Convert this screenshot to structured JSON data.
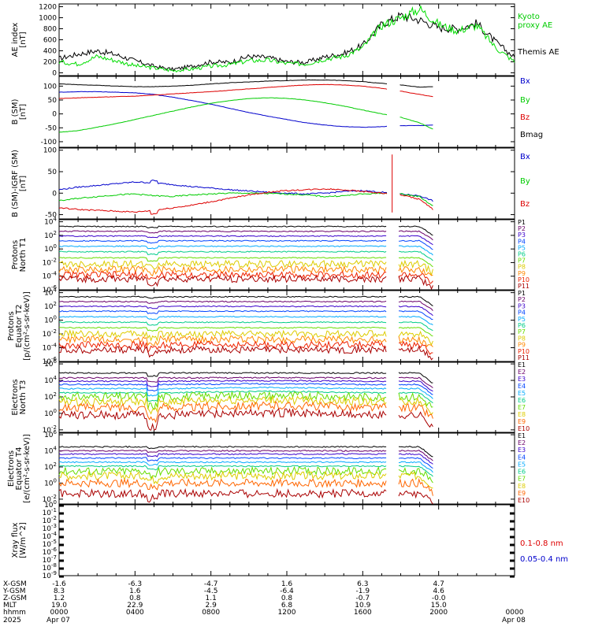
{
  "chart_data": [
    {
      "type": "line",
      "id": "ae",
      "ylabel": [
        "AE index",
        "[nT]"
      ],
      "yticks": [
        "0",
        "200",
        "400",
        "600",
        "800",
        "1000",
        "1200"
      ],
      "ylim": [
        -50,
        1250
      ],
      "legend": [
        "Kyoto",
        "proxy AE",
        "Themis AE"
      ],
      "series": [
        {
          "name": "Themis AE",
          "color": "#000000",
          "x": [
            0,
            1,
            2,
            3,
            4,
            5,
            6,
            7,
            8,
            9,
            10,
            11,
            12,
            13,
            14,
            15,
            16,
            17,
            18,
            19,
            20,
            21,
            22,
            23,
            24
          ],
          "y": [
            260,
            340,
            400,
            330,
            220,
            120,
            60,
            120,
            200,
            190,
            300,
            280,
            200,
            190,
            290,
            350,
            500,
            880,
            1040,
            960,
            820,
            800,
            900,
            560,
            280
          ]
        },
        {
          "name": "Kyoto proxy AE",
          "color": "#00dd00",
          "x": [
            0,
            1,
            2,
            3,
            4,
            5,
            6,
            7,
            8,
            9,
            10,
            11,
            12,
            13,
            14,
            15,
            16,
            17,
            18,
            19,
            20,
            21,
            22,
            23,
            24
          ],
          "y": [
            200,
            160,
            300,
            220,
            130,
            90,
            40,
            70,
            120,
            150,
            220,
            230,
            170,
            160,
            250,
            300,
            460,
            860,
            1000,
            1160,
            880,
            760,
            860,
            460,
            200
          ]
        }
      ]
    },
    {
      "type": "line",
      "id": "bsm",
      "ylabel": [
        "B (SM)",
        "[nT]"
      ],
      "yticks": [
        "-100",
        "-50",
        "0",
        "50",
        "100"
      ],
      "ylim": [
        -120,
        135
      ],
      "legend": [
        "Bx",
        "By",
        "Bz",
        "Bmag"
      ],
      "series": [
        {
          "name": "Bx",
          "color": "#0000cc",
          "x": [
            0,
            1,
            2,
            3,
            4,
            5,
            6,
            7,
            8,
            9,
            10,
            11,
            12,
            13,
            14,
            15,
            16,
            17,
            18,
            19,
            19.7
          ],
          "y": [
            78,
            80,
            80,
            78,
            76,
            70,
            60,
            48,
            35,
            20,
            5,
            -8,
            -20,
            -32,
            -40,
            -46,
            -48,
            -46,
            -42,
            -42,
            -40
          ]
        },
        {
          "name": "By",
          "color": "#00cc00",
          "x": [
            0,
            1,
            2,
            3,
            4,
            5,
            6,
            7,
            8,
            9,
            10,
            11,
            12,
            13,
            14,
            15,
            16,
            17,
            18,
            19,
            19.7
          ],
          "y": [
            -66,
            -60,
            -48,
            -35,
            -20,
            -5,
            10,
            25,
            38,
            48,
            55,
            58,
            56,
            50,
            40,
            28,
            14,
            0,
            -12,
            -32,
            -55
          ]
        },
        {
          "name": "Bz",
          "color": "#dd0000",
          "x": [
            0,
            1,
            2,
            3,
            4,
            5,
            6,
            7,
            8,
            9,
            10,
            11,
            12,
            13,
            14,
            15,
            16,
            17,
            18,
            19,
            19.7
          ],
          "y": [
            55,
            58,
            60,
            62,
            64,
            68,
            72,
            76,
            80,
            85,
            90,
            95,
            100,
            104,
            106,
            104,
            100,
            92,
            82,
            70,
            62
          ]
        },
        {
          "name": "Bmag",
          "color": "#000000",
          "x": [
            0,
            1,
            2,
            3,
            4,
            5,
            6,
            7,
            8,
            9,
            10,
            11,
            12,
            13,
            14,
            15,
            16,
            17,
            18,
            19,
            19.7
          ],
          "y": [
            108,
            105,
            103,
            100,
            98,
            98,
            100,
            103,
            108,
            112,
            115,
            118,
            120,
            122,
            122,
            120,
            116,
            110,
            104,
            96,
            98
          ]
        }
      ]
    },
    {
      "type": "line",
      "id": "bdiff",
      "ylabel": [
        "B (SM)-IGRF (SM)",
        "[nT]"
      ],
      "yticks": [
        "-50",
        "0",
        "50",
        "100"
      ],
      "ylim": [
        -60,
        105
      ],
      "legend": [
        "Bx",
        "By",
        "Bz"
      ],
      "series": [
        {
          "name": "Bx",
          "color": "#0000cc",
          "x": [
            0,
            1,
            2,
            3,
            4,
            5,
            6,
            7,
            8,
            9,
            10,
            11,
            12,
            13,
            14,
            15,
            16,
            17,
            18,
            19,
            19.7
          ],
          "y": [
            8,
            14,
            18,
            22,
            26,
            24,
            20,
            15,
            12,
            8,
            5,
            2,
            0,
            -2,
            0,
            4,
            6,
            2,
            -2,
            -6,
            -18
          ]
        },
        {
          "name": "By",
          "color": "#00cc00",
          "x": [
            0,
            1,
            2,
            3,
            4,
            5,
            6,
            7,
            8,
            9,
            10,
            11,
            12,
            13,
            14,
            15,
            16,
            17,
            18,
            19,
            19.7
          ],
          "y": [
            -18,
            -12,
            -8,
            -4,
            -2,
            -6,
            -8,
            -4,
            -2,
            0,
            0,
            -1,
            -2,
            -4,
            -8,
            -6,
            -2,
            0,
            -2,
            -8,
            -30
          ]
        },
        {
          "name": "Bz",
          "color": "#dd0000",
          "x": [
            0,
            1,
            2,
            3,
            4,
            5,
            6,
            7,
            8,
            9,
            10,
            11,
            12,
            13,
            14,
            15,
            16,
            17,
            18,
            19,
            19.7
          ],
          "y": [
            -34,
            -38,
            -40,
            -42,
            -44,
            -40,
            -34,
            -28,
            -20,
            -12,
            -4,
            2,
            6,
            8,
            10,
            8,
            4,
            0,
            -4,
            -14,
            -38
          ]
        }
      ]
    },
    {
      "type": "line",
      "id": "pn",
      "ylabel": [
        "Protons",
        "North T1"
      ],
      "yticks": [
        "10^-6",
        "10^-4",
        "10^-2",
        "10^0",
        "10^2",
        "10^4"
      ],
      "ylim": [
        -6,
        4.3
      ],
      "legend": [
        "P1",
        "P2",
        "P3",
        "P4",
        "P5",
        "P6",
        "P7",
        "P8",
        "P9",
        "P10",
        "P11"
      ],
      "series": [
        {
          "name": "P1",
          "color": "#000000",
          "level": 3.3
        },
        {
          "name": "P2",
          "color": "#6a006a",
          "level": 2.6
        },
        {
          "name": "P3",
          "color": "#3a00cc",
          "level": 1.9
        },
        {
          "name": "P4",
          "color": "#0044ff",
          "level": 1.2
        },
        {
          "name": "P5",
          "color": "#00aaff",
          "level": 0.4
        },
        {
          "name": "P6",
          "color": "#00cc88",
          "level": -0.4
        },
        {
          "name": "P7",
          "color": "#66dd00",
          "level": -1.3
        },
        {
          "name": "P8",
          "color": "#ddcc00",
          "level": -2.2
        },
        {
          "name": "P9",
          "color": "#ff8800",
          "level": -3.0
        },
        {
          "name": "P10",
          "color": "#ee2200",
          "level": -3.8
        },
        {
          "name": "P11",
          "color": "#aa0000",
          "level": -4.4
        }
      ]
    },
    {
      "type": "line",
      "id": "pe",
      "ylabel": [
        "Protons",
        "Equator T2",
        "[p/(cm²-s-sr-keV)]"
      ],
      "yticks": [
        "10^-6",
        "10^-4",
        "10^-2",
        "10^0",
        "10^2",
        "10^4"
      ],
      "ylim": [
        -6,
        4.3
      ],
      "legend": [
        "P1",
        "P2",
        "P3",
        "P4",
        "P5",
        "P6",
        "P7",
        "P8",
        "P9",
        "P10",
        "P11"
      ],
      "series": [
        {
          "name": "P1",
          "color": "#000000",
          "level": 3.4
        },
        {
          "name": "P2",
          "color": "#6a006a",
          "level": 2.7
        },
        {
          "name": "P3",
          "color": "#3a00cc",
          "level": 2.0
        },
        {
          "name": "P4",
          "color": "#0044ff",
          "level": 1.3
        },
        {
          "name": "P5",
          "color": "#00aaff",
          "level": 0.5
        },
        {
          "name": "P6",
          "color": "#00cc88",
          "level": -0.3
        },
        {
          "name": "P7",
          "color": "#66dd00",
          "level": -1.1
        },
        {
          "name": "P8",
          "color": "#ddcc00",
          "level": -2.0
        },
        {
          "name": "P9",
          "color": "#ff8800",
          "level": -2.8
        },
        {
          "name": "P10",
          "color": "#ee2200",
          "level": -3.6
        },
        {
          "name": "P11",
          "color": "#aa0000",
          "level": -4.3
        }
      ]
    },
    {
      "type": "line",
      "id": "en",
      "ylabel": [
        "Electrons",
        "North T3"
      ],
      "yticks": [
        "10^-2",
        "10^0",
        "10^2",
        "10^4",
        "10^6"
      ],
      "ylim": [
        -2.3,
        6.2
      ],
      "legend": [
        "E1",
        "E2",
        "E3",
        "E4",
        "E5",
        "E6",
        "E7",
        "E8",
        "E9",
        "E10"
      ],
      "series": [
        {
          "name": "E1",
          "color": "#000000",
          "level": 4.9
        },
        {
          "name": "E2",
          "color": "#6a006a",
          "level": 4.3
        },
        {
          "name": "E3",
          "color": "#3a00cc",
          "level": 3.9
        },
        {
          "name": "E4",
          "color": "#0044ff",
          "level": 3.5
        },
        {
          "name": "E5",
          "color": "#00aaff",
          "level": 3.0
        },
        {
          "name": "E6",
          "color": "#00cc88",
          "level": 2.5
        },
        {
          "name": "E7",
          "color": "#66dd00",
          "level": 2.0
        },
        {
          "name": "E8",
          "color": "#ddcc00",
          "level": 1.4
        },
        {
          "name": "E9",
          "color": "#ff6600",
          "level": 0.7
        },
        {
          "name": "E10",
          "color": "#aa0000",
          "level": -0.2
        }
      ]
    },
    {
      "type": "line",
      "id": "ee",
      "ylabel": [
        "Electrons",
        "Equator T4",
        "[e/(cm²-s-sr-keV)]"
      ],
      "yticks": [
        "10^-2",
        "10^0",
        "10^2",
        "10^4",
        "10^6"
      ],
      "ylim": [
        -2.6,
        6.2
      ],
      "legend": [
        "E1",
        "E2",
        "E3",
        "E4",
        "E5",
        "E6",
        "E7",
        "E8",
        "E9",
        "E10"
      ],
      "series": [
        {
          "name": "E1",
          "color": "#000000",
          "level": 4.5
        },
        {
          "name": "E2",
          "color": "#6a006a",
          "level": 4.0
        },
        {
          "name": "E3",
          "color": "#3a00cc",
          "level": 3.6
        },
        {
          "name": "E4",
          "color": "#0044ff",
          "level": 3.1
        },
        {
          "name": "E5",
          "color": "#00aaff",
          "level": 2.6
        },
        {
          "name": "E6",
          "color": "#00cc88",
          "level": 2.1
        },
        {
          "name": "E7",
          "color": "#66dd00",
          "level": 1.5
        },
        {
          "name": "E8",
          "color": "#ddcc00",
          "level": 0.9
        },
        {
          "name": "E9",
          "color": "#ff6600",
          "level": 0.0
        },
        {
          "name": "E10",
          "color": "#aa0000",
          "level": -1.3
        }
      ]
    },
    {
      "type": "line",
      "id": "xray",
      "ylabel": [
        "Xray flux",
        "[W/m^2]"
      ],
      "yticks": [
        "10^-9",
        "10^-8",
        "10^-7",
        "10^-6",
        "10^-5",
        "10^-4",
        "10^-3",
        "10^-2",
        "10^-1",
        "10^0"
      ],
      "ylim": [
        -9,
        0
      ],
      "legend": [
        "0.1-0.8 nm",
        "0.05-0.4 nm"
      ],
      "series": [
        {
          "name": "0.1-0.8 nm",
          "color": "#dd0000"
        },
        {
          "name": "0.05-0.4 nm",
          "color": "#0000cc"
        }
      ]
    }
  ],
  "footer": {
    "row_labels": [
      "X-GSM",
      "Y-GSM",
      "Z-GSM",
      "MLT",
      "hhmm",
      "2025"
    ],
    "columns": [
      {
        "values": [
          "-1.6",
          "8.3",
          "1.2",
          "19.0",
          "0000",
          "Apr 07"
        ]
      },
      {
        "values": [
          "-6.3",
          "1.6",
          "0.8",
          "22.9",
          "0400",
          ""
        ]
      },
      {
        "values": [
          "-4.7",
          "-4.5",
          "1.1",
          "2.9",
          "0800",
          ""
        ]
      },
      {
        "values": [
          "1.6",
          "-6.4",
          "0.8",
          "6.8",
          "1200",
          ""
        ]
      },
      {
        "values": [
          "6.3",
          "-1.9",
          "-0.7",
          "10.9",
          "1600",
          ""
        ]
      },
      {
        "values": [
          "4.7",
          "4.6",
          "-0.0",
          "15.0",
          "2000",
          ""
        ]
      },
      {
        "values": [
          "",
          "",
          "",
          "",
          "0000",
          "Apr 08"
        ]
      }
    ]
  }
}
